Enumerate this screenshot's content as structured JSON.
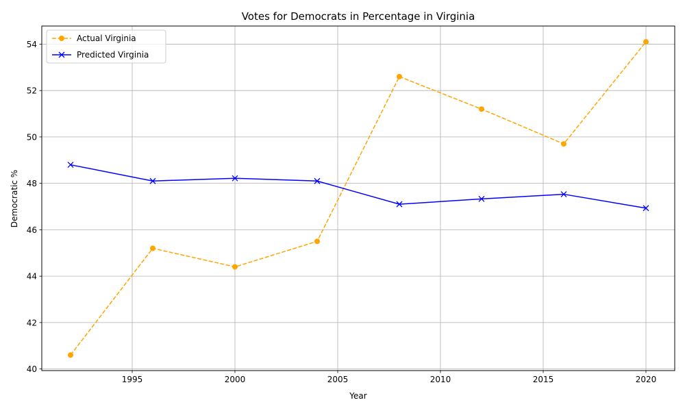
{
  "chart_data": {
    "type": "line",
    "title": "Votes for Democrats in Percentage in Virginia",
    "xlabel": "Year",
    "ylabel": "Democratic %",
    "x": [
      1992,
      1996,
      2000,
      2004,
      2008,
      2012,
      2016,
      2020
    ],
    "xlim": [
      1990.6,
      2021.4
    ],
    "ylim": [
      39.93,
      54.78
    ],
    "xticks": [
      1995,
      2000,
      2005,
      2010,
      2015,
      2020
    ],
    "yticks": [
      40,
      42,
      44,
      46,
      48,
      50,
      52,
      54
    ],
    "grid": true,
    "legend_position": "top-left",
    "series": [
      {
        "name": "Actual Virginia",
        "values": [
          40.6,
          45.2,
          44.4,
          45.5,
          52.6,
          51.2,
          49.7,
          54.1
        ],
        "color": "#FFA500",
        "line_style": "dashed",
        "marker": "circle"
      },
      {
        "name": "Predicted Virginia",
        "values": [
          48.8,
          48.1,
          48.22,
          48.1,
          47.1,
          47.33,
          47.53,
          46.93
        ],
        "color": "#0000FF",
        "line_style": "solid",
        "marker": "x"
      }
    ]
  }
}
